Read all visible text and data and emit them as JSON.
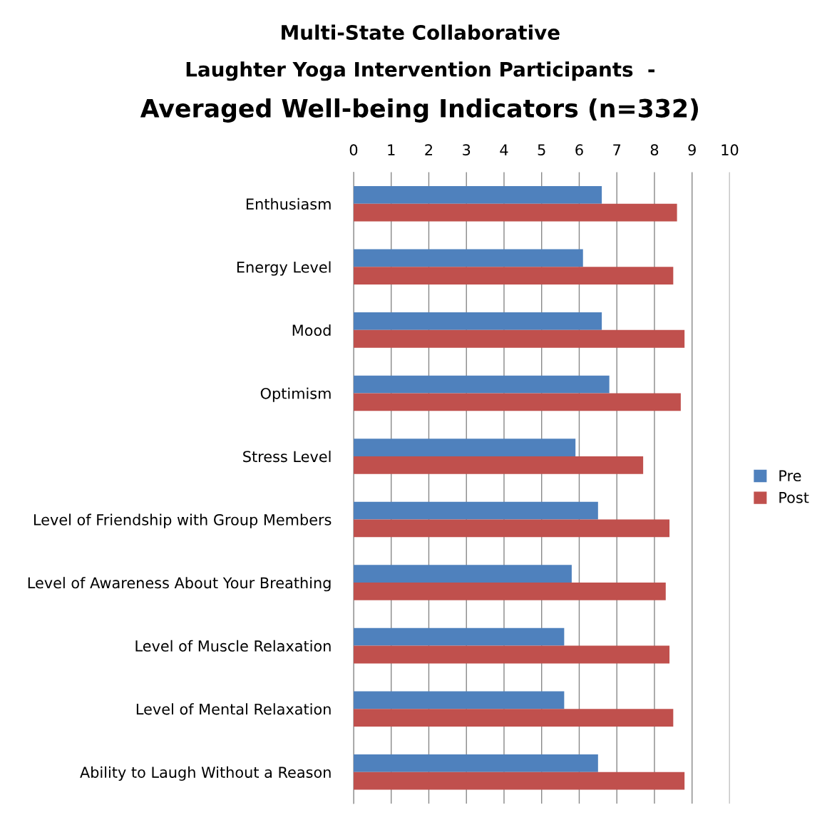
{
  "chart_data": {
    "type": "bar",
    "orientation": "horizontal",
    "title": "Multi-State Collaborative\nLaughter Yoga Intervention Participants  -\nAveraged Well-being Indicators (n=332)",
    "categories": [
      "Enthusiasm",
      "Energy Level",
      "Mood",
      "Optimism",
      "Stress Level",
      "Level of Friendship with Group Members",
      "Level of Awareness About Your Breathing",
      "Level of Muscle Relaxation",
      "Level of Mental Relaxation",
      "Ability to Laugh Without a Reason"
    ],
    "series": [
      {
        "name": "Pre",
        "color": "#4f81bd",
        "values": [
          6.6,
          6.1,
          6.6,
          6.8,
          5.9,
          6.5,
          5.8,
          5.6,
          5.6,
          6.5
        ]
      },
      {
        "name": "Post",
        "color": "#c0504d",
        "values": [
          8.6,
          8.5,
          8.8,
          8.7,
          7.7,
          8.4,
          8.3,
          8.4,
          8.5,
          8.8
        ]
      }
    ],
    "xlim": [
      0,
      10
    ],
    "xticks": [
      0,
      1,
      2,
      3,
      4,
      5,
      6,
      7,
      8,
      9,
      10
    ],
    "grid": "x",
    "legend": "right"
  }
}
